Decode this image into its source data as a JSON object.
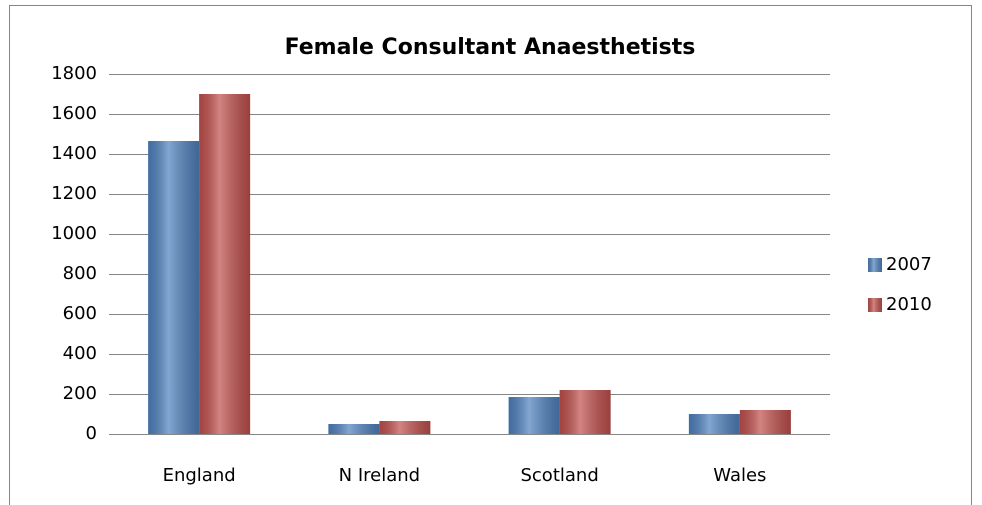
{
  "chart_data": {
    "type": "bar",
    "title": "Female Consultant Anaesthetists",
    "categories": [
      "England",
      "N Ireland",
      "Scotland",
      "Wales"
    ],
    "series": [
      {
        "name": "2007",
        "color": "#4f81bd",
        "values": [
          1465,
          50,
          185,
          100
        ]
      },
      {
        "name": "2010",
        "color": "#c0504d",
        "values": [
          1700,
          65,
          220,
          120
        ]
      }
    ],
    "ylim": [
      0,
      1800
    ],
    "yticks": [
      0,
      200,
      400,
      600,
      800,
      1000,
      1200,
      1400,
      1600,
      1800
    ],
    "grid": true,
    "legend": "right"
  }
}
